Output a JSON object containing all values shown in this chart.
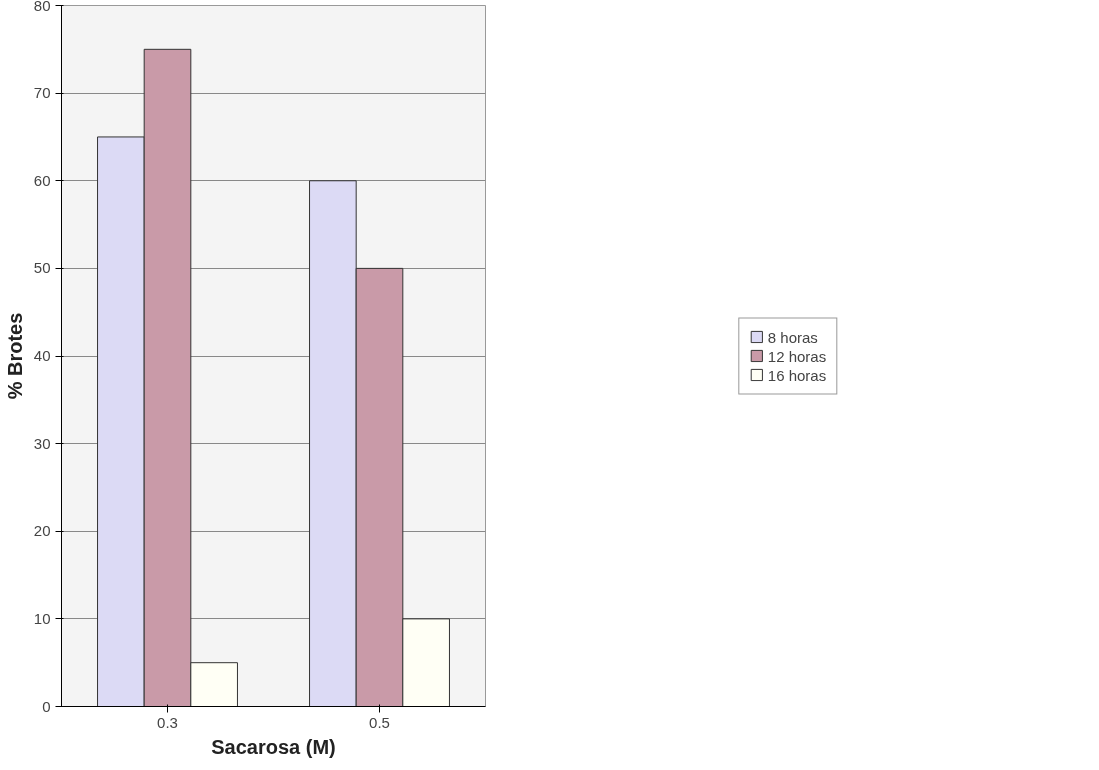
{
  "chart_data": {
    "type": "bar",
    "xlabel": "Sacarosa (M)",
    "ylabel": "% Brotes",
    "categories": [
      "0.3",
      "0.5"
    ],
    "series": [
      {
        "name": "8 horas",
        "color": "#dcdaf5",
        "values": [
          65,
          60
        ]
      },
      {
        "name": "12 horas",
        "color": "#c99aa8",
        "values": [
          75,
          50
        ]
      },
      {
        "name": "16 horas",
        "color": "#fffff5",
        "values": [
          5,
          10
        ]
      }
    ],
    "ylim": [
      0,
      80
    ],
    "yticks": [
      0,
      10,
      20,
      30,
      40,
      50,
      60,
      70,
      80
    ],
    "grid": "y",
    "legend": "right"
  }
}
